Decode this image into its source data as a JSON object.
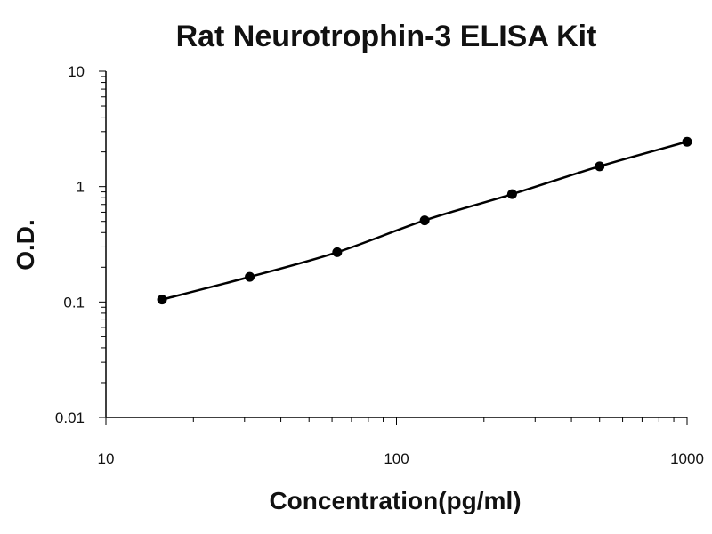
{
  "chart_data": {
    "type": "scatter",
    "title": "Rat Neurotrophin-3 ELISA Kit",
    "xlabel": "Concentration(pg/ml)",
    "ylabel": "O.D.",
    "xscale": "log",
    "yscale": "log",
    "xlim": [
      10,
      1000
    ],
    "ylim": [
      0.01,
      10
    ],
    "x_ticks": [
      10,
      100,
      1000
    ],
    "x_tick_labels": [
      "10",
      "100",
      "1000"
    ],
    "y_ticks": [
      0.01,
      0.1,
      1,
      10
    ],
    "y_tick_labels": [
      "0.01",
      "0.1",
      "1",
      "10"
    ],
    "grid": false,
    "legend": "none",
    "series": [
      {
        "x": [
          15.6,
          31.25,
          62.5,
          125,
          250,
          500,
          1000
        ],
        "y": [
          0.105,
          0.165,
          0.27,
          0.51,
          0.86,
          1.5,
          2.45
        ]
      }
    ],
    "fit_line": true,
    "colors": {
      "marker": "#000000",
      "line": "#000000",
      "axis": "#000000"
    }
  }
}
